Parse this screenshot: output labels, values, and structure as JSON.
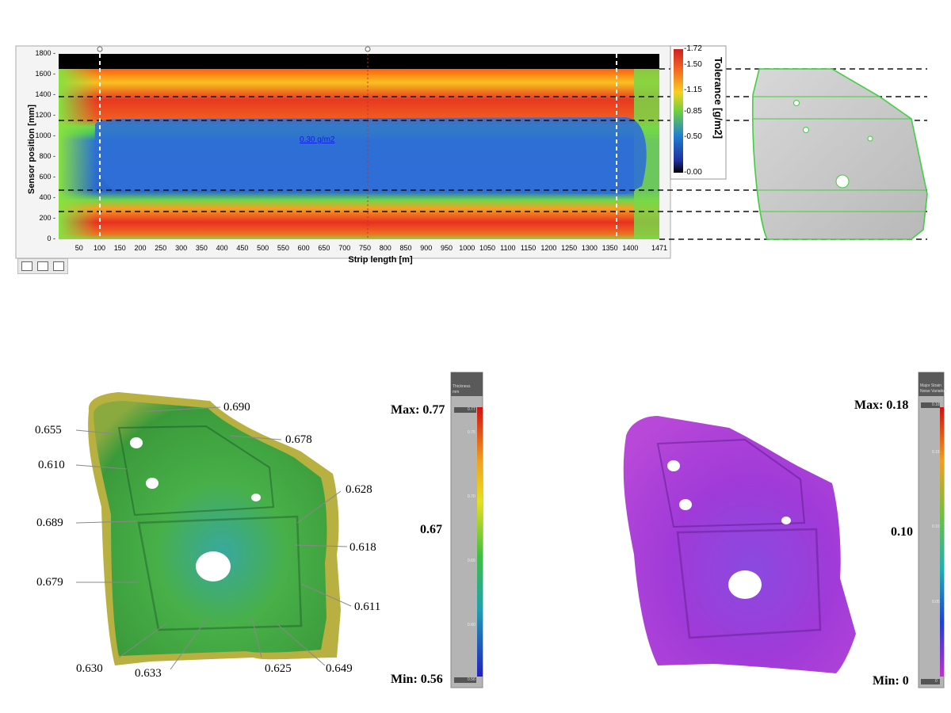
{
  "chart_data": [
    {
      "type": "heatmap",
      "title": "",
      "xlabel": "Strip length [m]",
      "ylabel": "Sensor position [mm]",
      "colorbar_label": "Tolerance [g/m2]",
      "x_ticks": [
        "50",
        "100",
        "150",
        "200",
        "250",
        "300",
        "350",
        "400",
        "450",
        "500",
        "550",
        "600",
        "650",
        "700",
        "750",
        "800",
        "850",
        "900",
        "950",
        "1000",
        "1050",
        "1100",
        "1150",
        "1200",
        "1250",
        "1300",
        "1350",
        "1400",
        "1471"
      ],
      "y_ticks": [
        "0",
        "200",
        "400",
        "600",
        "800",
        "1000",
        "1200",
        "1400",
        "1600",
        "1800"
      ],
      "colorbar_ticks": [
        "1.72",
        "1.50",
        "1.15",
        "0.85",
        "0.50",
        "0.00"
      ],
      "annotation": "0.30 g/m2",
      "xlim": [
        0,
        1471
      ],
      "ylim": [
        0,
        1800
      ]
    },
    {
      "type": "heatmap",
      "title": "",
      "legend_header": [
        "Thickness",
        "mm"
      ],
      "scale_max_label": "Max: 0.77",
      "scale_mid_label": "0.67",
      "scale_min_label": "Min: 0.56",
      "scale_top_value": "0.77",
      "scale_bottom_value": "0.56",
      "colorbar_ticks": [
        "0.75",
        "0.70",
        "0.65",
        "0.60"
      ],
      "point_labels": [
        "0.690",
        "0.655",
        "0.678",
        "0.610",
        "0.628",
        "0.689",
        "0.618",
        "0.679",
        "0.611",
        "0.630",
        "0.633",
        "0.625",
        "0.649"
      ]
    },
    {
      "type": "heatmap",
      "title": "",
      "legend_header": [
        "Major Strain",
        "Noise Variation"
      ],
      "scale_max_label": "Max: 0.18",
      "scale_mid_label": "0.10",
      "scale_min_label": "Min: 0",
      "scale_top_value": "0.18",
      "scale_bottom_value": "0",
      "colorbar_ticks": [
        "0.15",
        "0.10",
        "0.05"
      ]
    }
  ],
  "colors": {
    "high": "#e82020",
    "mid_high": "#f0a020",
    "mid": "#80e040",
    "low": "#2e6fd8",
    "min": "#1a1a6a",
    "thickness_green": "#3aa03a",
    "strain_purple": "#a43ad8",
    "outline_green": "#40d040"
  }
}
